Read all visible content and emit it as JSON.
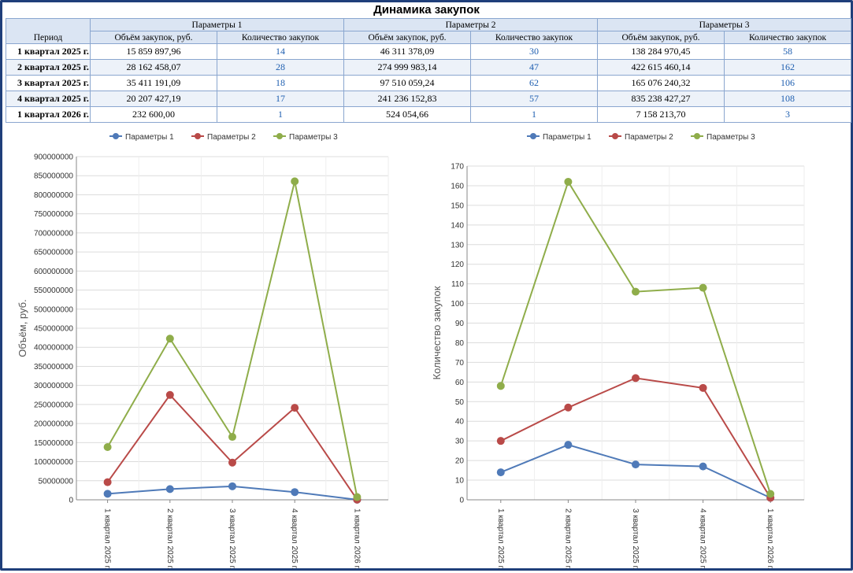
{
  "title": "Динамика закупок",
  "table": {
    "period_header": "Период",
    "group_headers": [
      "Параметры 1",
      "Параметры 2",
      "Параметры 3"
    ],
    "sub_headers": [
      "Объём закупок, руб.",
      "Количество закупок"
    ],
    "rows": [
      {
        "period": "1 квартал 2025 г.",
        "cells": [
          "15 859 897,96",
          "14",
          "46 311 378,09",
          "30",
          "138 284 970,45",
          "58"
        ]
      },
      {
        "period": "2 квартал 2025 г.",
        "cells": [
          "28 162 458,07",
          "28",
          "274 999 983,14",
          "47",
          "422 615 460,14",
          "162"
        ]
      },
      {
        "period": "3 квартал 2025 г.",
        "cells": [
          "35 411 191,09",
          "18",
          "97 510 059,24",
          "62",
          "165 076 240,32",
          "106"
        ]
      },
      {
        "period": "4 квартал 2025 г.",
        "cells": [
          "20 207 427,19",
          "17",
          "241 236 152,83",
          "57",
          "835 238 427,27",
          "108"
        ]
      },
      {
        "period": "1 квартал 2026 г.",
        "cells": [
          "232 600,00",
          "1",
          "524 054,66",
          "1",
          "7 158 213,70",
          "3"
        ]
      }
    ]
  },
  "colors": {
    "Параметры 1": "#4f7ab8",
    "Параметры 2": "#b94a48",
    "Параметры 3": "#8fad4a"
  },
  "chart_data": [
    {
      "type": "line",
      "title": "",
      "xlabel": "",
      "ylabel": "Объём, руб.",
      "categories": [
        "1 квартал 2025 г.",
        "2 квартал 2025 г.",
        "3 квартал 2025 г.",
        "4 квартал 2025 г.",
        "1 квартал 2026 г."
      ],
      "ylim": [
        0,
        900000000
      ],
      "ytick_step": 50000000,
      "grid": true,
      "legend": "top-center",
      "series": [
        {
          "name": "Параметры 1",
          "values": [
            15859897.96,
            28162458.07,
            35411191.09,
            20207427.19,
            232600.0
          ]
        },
        {
          "name": "Параметры 2",
          "values": [
            46311378.09,
            274999983.14,
            97510059.24,
            241236152.83,
            524054.66
          ]
        },
        {
          "name": "Параметры 3",
          "values": [
            138284970.45,
            422615460.14,
            165076240.32,
            835238427.27,
            7158213.7
          ]
        }
      ]
    },
    {
      "type": "line",
      "title": "",
      "xlabel": "",
      "ylabel": "Количество закупок",
      "categories": [
        "1 квартал 2025 г.",
        "2 квартал 2025 г.",
        "3 квартал 2025 г.",
        "4 квартал 2025 г.",
        "1 квартал 2026 г."
      ],
      "ylim": [
        0,
        170
      ],
      "ytick_step": 10,
      "grid": true,
      "legend": "top-center",
      "series": [
        {
          "name": "Параметры 1",
          "values": [
            14,
            28,
            18,
            17,
            1
          ]
        },
        {
          "name": "Параметры 2",
          "values": [
            30,
            47,
            62,
            57,
            1
          ]
        },
        {
          "name": "Параметры 3",
          "values": [
            58,
            162,
            106,
            108,
            3
          ]
        }
      ]
    }
  ]
}
